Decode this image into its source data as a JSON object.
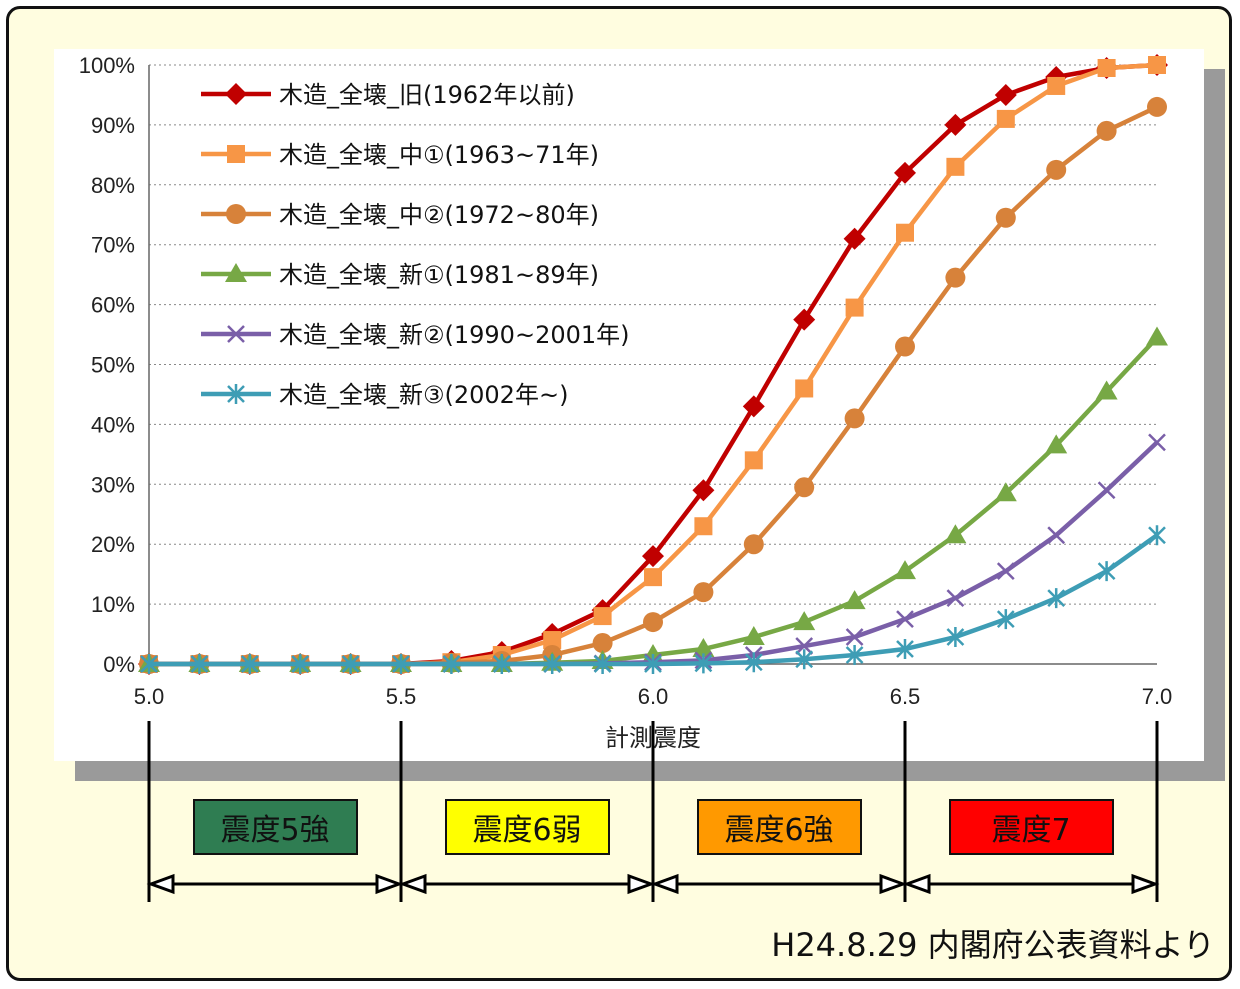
{
  "chart_data": {
    "type": "line",
    "xlabel": "計測震度",
    "x": [
      5.0,
      5.1,
      5.2,
      5.3,
      5.4,
      5.5,
      5.6,
      5.7,
      5.8,
      5.9,
      6.0,
      6.1,
      6.2,
      6.3,
      6.4,
      6.5,
      6.6,
      6.7,
      6.8,
      6.9,
      7.0
    ],
    "x_ticks": [
      "5.0",
      "5.5",
      "6.0",
      "6.5",
      "7.0"
    ],
    "y_ticks": [
      "0%",
      "10%",
      "20%",
      "30%",
      "40%",
      "50%",
      "60%",
      "70%",
      "80%",
      "90%",
      "100%"
    ],
    "xlim": [
      5.0,
      7.0
    ],
    "ylim": [
      0,
      100
    ],
    "grid": "horizontal dotted",
    "legend_position": "top-left",
    "series": [
      {
        "name": "木造_全壊_旧(1962年以前)",
        "color": "#c00000",
        "marker": "diamond",
        "values": [
          0,
          0,
          0,
          0,
          0,
          0,
          0.5,
          2,
          5,
          9,
          18,
          29,
          43,
          57.5,
          71,
          82,
          90,
          95,
          98,
          99.5,
          100
        ]
      },
      {
        "name": "木造_全壊_中①(1963~71年)",
        "color": "#f79646",
        "marker": "square",
        "values": [
          0,
          0,
          0,
          0,
          0,
          0,
          0.3,
          1.5,
          4,
          8,
          14.5,
          23,
          34,
          46,
          59.5,
          72,
          83,
          91,
          96.5,
          99.5,
          100
        ]
      },
      {
        "name": "木造_全壊_中②(1972~80年)",
        "color": "#d7823a",
        "marker": "circle",
        "values": [
          0,
          0,
          0,
          0,
          0,
          0,
          0.2,
          0.5,
          1.5,
          3.5,
          7,
          12,
          20,
          29.5,
          41,
          53,
          64.5,
          74.5,
          82.5,
          89,
          93
        ]
      },
      {
        "name": "木造_全壊_新①(1981~89年)",
        "color": "#77a845",
        "marker": "triangle",
        "values": [
          0,
          0,
          0,
          0,
          0,
          0,
          0,
          0,
          0.2,
          0.5,
          1.5,
          2.5,
          4.5,
          7,
          10.5,
          15.5,
          21.5,
          28.5,
          36.5,
          45.5,
          54.5
        ]
      },
      {
        "name": "木造_全壊_新②(1990~2001年)",
        "color": "#7a5fa8",
        "marker": "x",
        "values": [
          0,
          0,
          0,
          0,
          0,
          0,
          0,
          0,
          0,
          0.1,
          0.3,
          0.6,
          1.5,
          3,
          4.5,
          7.5,
          11,
          15.5,
          21.5,
          29,
          37
        ]
      },
      {
        "name": "木造_全壊_新③(2002年~)",
        "color": "#3e9db5",
        "marker": "asterisk",
        "values": [
          0,
          0,
          0,
          0,
          0,
          0,
          0,
          0,
          0,
          0,
          0,
          0.1,
          0.3,
          0.8,
          1.5,
          2.5,
          4.5,
          7.5,
          11,
          15.5,
          21.5
        ]
      }
    ]
  },
  "intensity_bands": [
    {
      "label": "震度5強",
      "from": 5.0,
      "to": 5.5,
      "color": "#2f7d52"
    },
    {
      "label": "震度6弱",
      "from": 5.5,
      "to": 6.0,
      "color": "#ffff00"
    },
    {
      "label": "震度6強",
      "from": 6.0,
      "to": 6.5,
      "color": "#ff9900"
    },
    {
      "label": "震度7",
      "from": 6.5,
      "to": 7.0,
      "color": "#ff0000"
    }
  ],
  "source_note": "H24.8.29 内閣府公表資料より"
}
